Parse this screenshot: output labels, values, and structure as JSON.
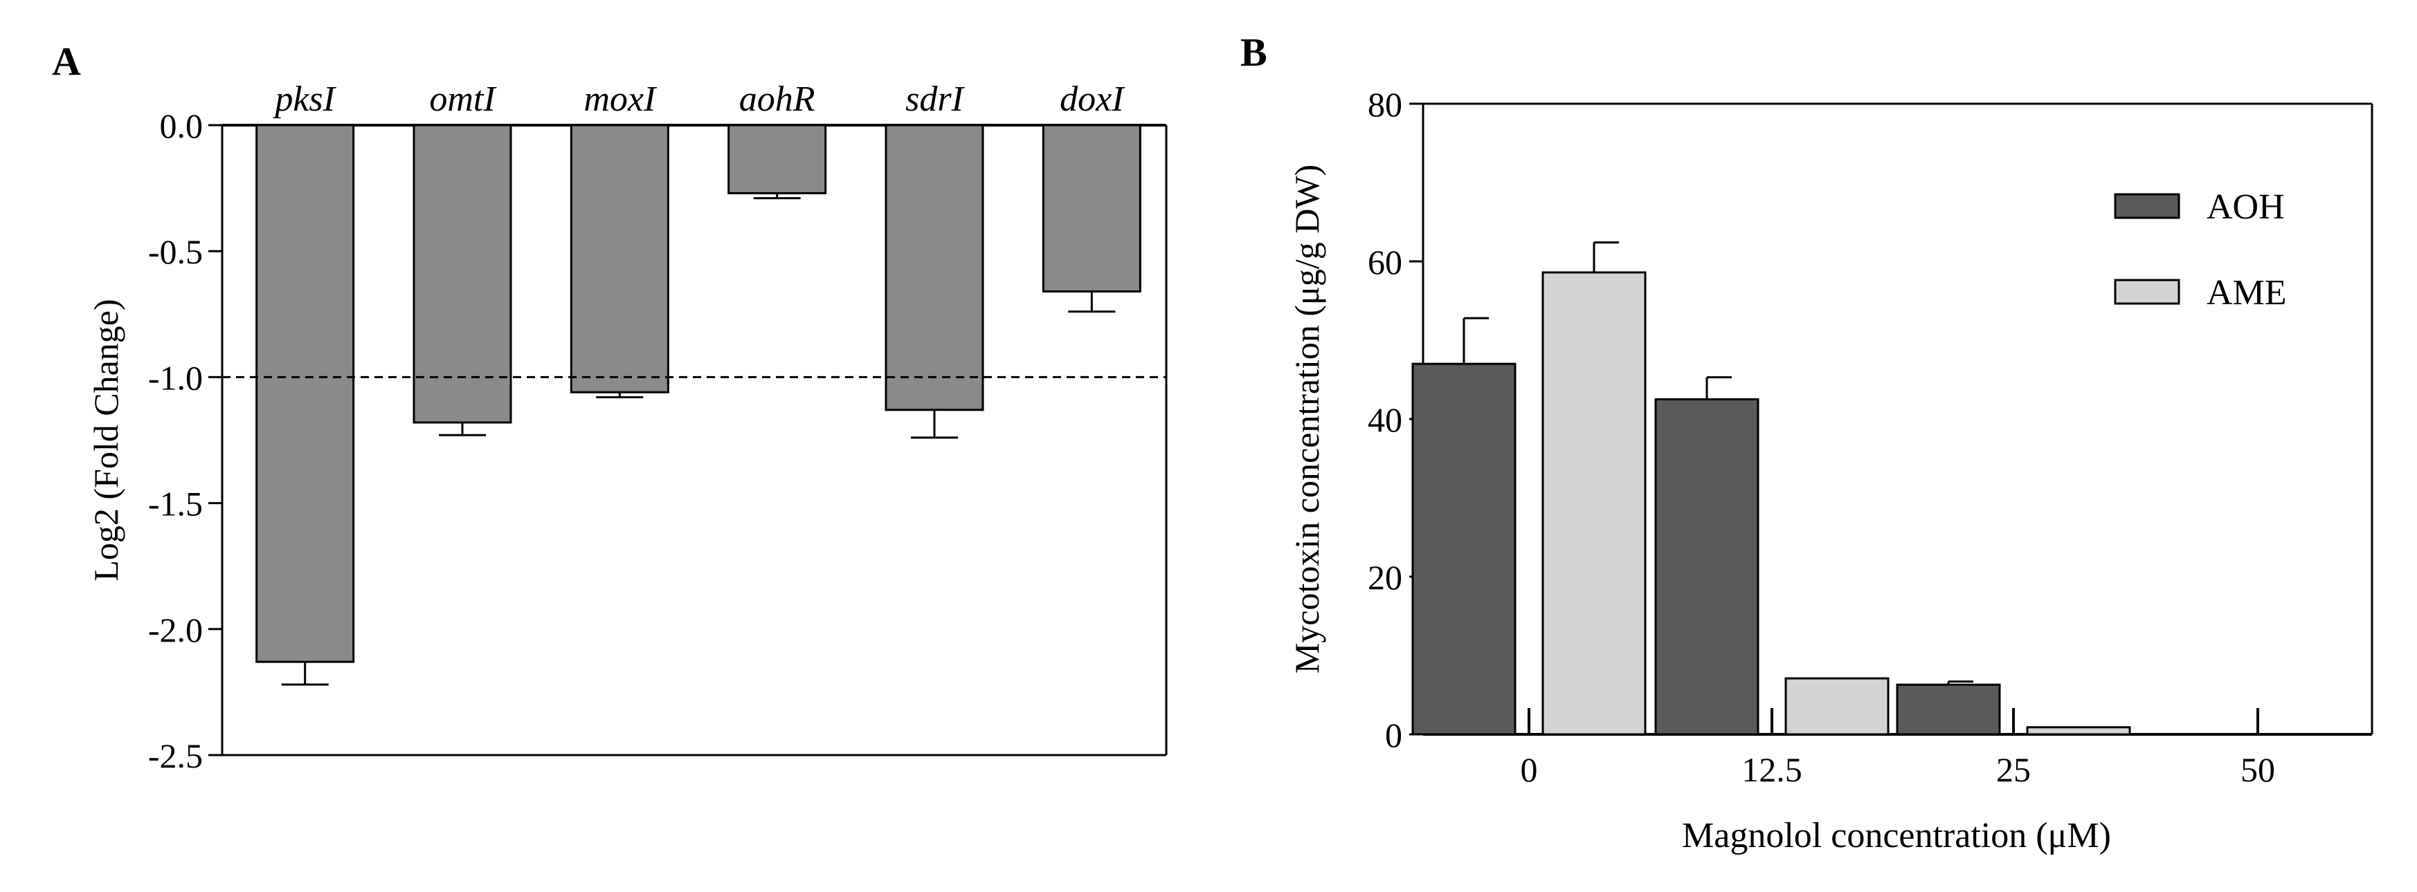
{
  "colors": {
    "bar_a": "#8a8a8a",
    "aoh": "#5a5a5a",
    "ame": "#d3d3d3",
    "stroke": "#000000"
  },
  "chart_data": [
    {
      "panel": "A",
      "type": "bar",
      "ylabel": "Log2 (Fold Change)",
      "ylim": [
        -2.5,
        0.0
      ],
      "yticks": [
        "0.0",
        "-0.5",
        "-1.0",
        "-1.5",
        "-2.0",
        "-2.5"
      ],
      "ytick_values": [
        0.0,
        -0.5,
        -1.0,
        -1.5,
        -2.0,
        -2.5
      ],
      "categories": [
        "pksI",
        "omtI",
        "moxI",
        "aohR",
        "sdrI",
        "doxI"
      ],
      "values": [
        -2.13,
        -1.18,
        -1.06,
        -0.27,
        -1.13,
        -0.66
      ],
      "errors": [
        0.09,
        0.05,
        0.02,
        0.02,
        0.11,
        0.08
      ],
      "reference_line": -1.0,
      "xlabel": ""
    },
    {
      "panel": "B",
      "type": "bar",
      "ylabel": "Mycotoxin concentration (μg/g DW)",
      "xlabel": "Magnolol concentration  (μM)",
      "ylim": [
        0,
        80
      ],
      "yticks": [
        "0",
        "20",
        "40",
        "60",
        "80"
      ],
      "ytick_values": [
        0,
        20,
        40,
        60,
        80
      ],
      "categories": [
        "0",
        "12.5",
        "25",
        "50"
      ],
      "series": [
        {
          "name": "AOH",
          "values": [
            47.0,
            42.5,
            6.3,
            0.0
          ],
          "errors": [
            5.8,
            2.8,
            0.4,
            0.0
          ]
        },
        {
          "name": "AME",
          "values": [
            58.6,
            7.1,
            0.9,
            0.0
          ],
          "errors": [
            3.8,
            0.0,
            0.0,
            0.0
          ]
        }
      ],
      "legend": [
        "AOH",
        "AME"
      ],
      "legend_position": "top-right"
    }
  ]
}
